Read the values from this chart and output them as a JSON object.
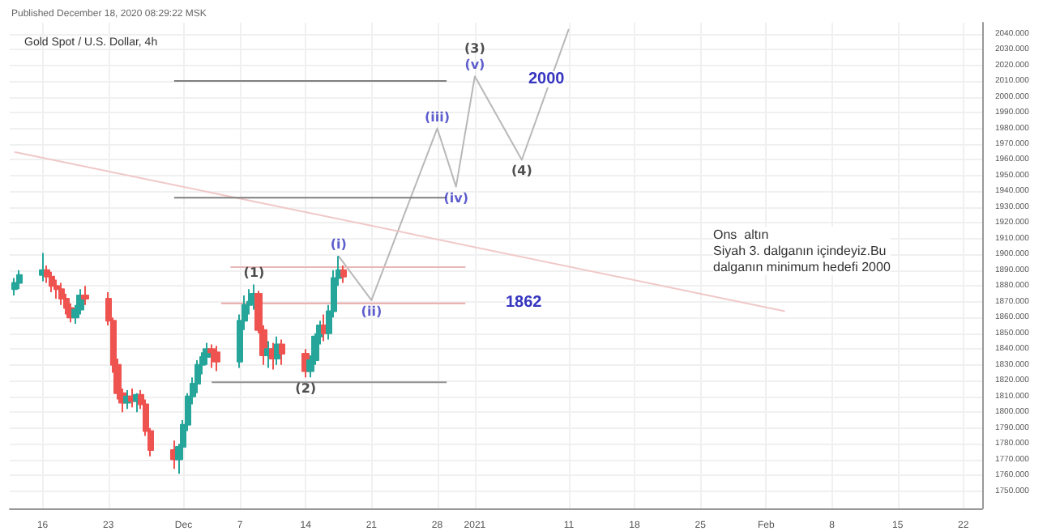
{
  "chart_data": {
    "type": "candlestick",
    "title": "Gold Spot / U.S. Dollar, 4h",
    "subtitle": "Published December 18, 2020 08:29:22 MSK",
    "x": [
      "2020-11-13T00:00",
      "2020-11-13T12:00",
      "2020-11-16T00:00",
      "2020-11-16T12:00",
      "2020-11-17T00:00",
      "2020-11-17T12:00",
      "2020-11-18T00:00",
      "2020-11-18T12:00",
      "2020-11-19T00:00",
      "2020-11-19T12:00",
      "2020-11-20T00:00",
      "2020-11-20T12:00",
      "2020-11-23T00:00",
      "2020-11-23T12:00",
      "2020-11-24T00:00",
      "2020-11-24T12:00",
      "2020-11-25T00:00",
      "2020-11-25T12:00",
      "2020-11-26T00:00",
      "2020-11-26T12:00",
      "2020-11-27T00:00",
      "2020-11-27T12:00",
      "2020-11-30T00:00",
      "2020-11-30T12:00",
      "2020-12-01T00:00",
      "2020-12-01T12:00",
      "2020-12-02T00:00",
      "2020-12-02T12:00",
      "2020-12-03T00:00",
      "2020-12-03T12:00",
      "2020-12-04T00:00",
      "2020-12-04T12:00",
      "2020-12-07T00:00",
      "2020-12-07T12:00",
      "2020-12-08T00:00",
      "2020-12-08T12:00",
      "2020-12-09T00:00",
      "2020-12-09T12:00",
      "2020-12-10T00:00",
      "2020-12-10T12:00",
      "2020-12-11T00:00",
      "2020-12-11T12:00",
      "2020-12-14T00:00",
      "2020-12-14T12:00",
      "2020-12-15T00:00",
      "2020-12-15T12:00",
      "2020-12-16T00:00",
      "2020-12-16T12:00",
      "2020-12-17T00:00",
      "2020-12-17T12:00",
      "2020-12-18T00:00"
    ],
    "ohlc": [
      [
        1878,
        1885,
        1874,
        1882
      ],
      [
        1882,
        1890,
        1878,
        1887
      ],
      [
        1887,
        1901,
        1883,
        1890
      ],
      [
        1890,
        1893,
        1882,
        1886
      ],
      [
        1886,
        1889,
        1876,
        1880
      ],
      [
        1880,
        1884,
        1872,
        1878
      ],
      [
        1878,
        1882,
        1868,
        1872
      ],
      [
        1872,
        1875,
        1862,
        1866
      ],
      [
        1866,
        1869,
        1857,
        1860
      ],
      [
        1860,
        1868,
        1856,
        1865
      ],
      [
        1865,
        1878,
        1862,
        1874
      ],
      [
        1874,
        1880,
        1868,
        1872
      ],
      [
        1872,
        1876,
        1855,
        1858
      ],
      [
        1858,
        1860,
        1825,
        1830
      ],
      [
        1830,
        1834,
        1808,
        1812
      ],
      [
        1812,
        1815,
        1800,
        1806
      ],
      [
        1806,
        1814,
        1802,
        1810
      ],
      [
        1810,
        1815,
        1803,
        1807
      ],
      [
        1807,
        1812,
        1800,
        1811
      ],
      [
        1811,
        1814,
        1802,
        1805
      ],
      [
        1805,
        1808,
        1785,
        1788
      ],
      [
        1788,
        1790,
        1772,
        1776
      ],
      [
        1776,
        1782,
        1764,
        1770
      ],
      [
        1770,
        1780,
        1761,
        1778
      ],
      [
        1778,
        1795,
        1775,
        1792
      ],
      [
        1792,
        1812,
        1788,
        1810
      ],
      [
        1810,
        1822,
        1805,
        1818
      ],
      [
        1818,
        1833,
        1812,
        1830
      ],
      [
        1830,
        1838,
        1824,
        1835
      ],
      [
        1835,
        1844,
        1830,
        1840
      ],
      [
        1840,
        1843,
        1828,
        1838
      ],
      [
        1838,
        1842,
        1826,
        1832
      ],
      [
        1832,
        1862,
        1828,
        1858
      ],
      [
        1858,
        1874,
        1852,
        1868
      ],
      [
        1868,
        1878,
        1862,
        1870
      ],
      [
        1870,
        1881,
        1865,
        1875
      ],
      [
        1875,
        1877,
        1850,
        1852
      ],
      [
        1852,
        1855,
        1830,
        1836
      ],
      [
        1836,
        1845,
        1828,
        1840
      ],
      [
        1840,
        1844,
        1827,
        1834
      ],
      [
        1834,
        1848,
        1830,
        1843
      ],
      [
        1843,
        1846,
        1830,
        1837
      ],
      [
        1837,
        1840,
        1822,
        1826
      ],
      [
        1826,
        1836,
        1822,
        1833
      ],
      [
        1833,
        1850,
        1830,
        1848
      ],
      [
        1848,
        1858,
        1843,
        1855
      ],
      [
        1855,
        1862,
        1845,
        1850
      ],
      [
        1850,
        1868,
        1846,
        1864
      ],
      [
        1864,
        1890,
        1860,
        1885
      ],
      [
        1885,
        1899,
        1880,
        1890
      ],
      [
        1890,
        1893,
        1882,
        1886
      ]
    ],
    "series": [
      {
        "type": "line",
        "color": "#b8b8b8",
        "x": [
          "2020-12-17T12:00",
          "2020-12-21",
          "2020-12-28",
          "2020-12-30",
          "2021-01-01",
          "2021-01-06",
          "2021-01-11"
        ],
        "values": [
          1899,
          1871,
          1980,
          1943,
          2013,
          1960,
          2043
        ]
      },
      {
        "type": "line",
        "color": "#f0c8c8",
        "x": [
          "2020-11-13",
          "2021-02-03"
        ],
        "values": [
          1965,
          1864
        ]
      },
      {
        "type": "line",
        "color": "#808080",
        "x": [
          "2020-11-30",
          "2020-12-29"
        ],
        "values": [
          2010,
          2010
        ]
      },
      {
        "type": "line",
        "color": "#808080",
        "x": [
          "2020-11-30",
          "2020-12-29"
        ],
        "values": [
          1936,
          1936
        ]
      },
      {
        "type": "line",
        "color": "#e8a8a8",
        "x": [
          "2020-12-05",
          "2020-12-31"
        ],
        "values": [
          1869,
          1869
        ]
      },
      {
        "type": "line",
        "color": "#e8b8b8",
        "x": [
          "2020-12-06",
          "2020-12-31"
        ],
        "values": [
          1892,
          1892
        ]
      },
      {
        "type": "line",
        "color": "#909090",
        "x": [
          "2020-12-04",
          "2020-12-29"
        ],
        "values": [
          1819,
          1819
        ]
      }
    ],
    "annotations": [
      {
        "text": "(1)",
        "x": "2020-12-08T12:00",
        "y": 1881
      },
      {
        "text": "(2)",
        "x": "2020-12-14T00:00",
        "y": 1822
      },
      {
        "text": "(3)",
        "x": "2021-01-01",
        "y": 2013
      },
      {
        "text": "(4)",
        "x": "2021-01-06",
        "y": 1960
      },
      {
        "text": "(i)",
        "x": "2020-12-17T12:00",
        "y": 1899
      },
      {
        "text": "(ii)",
        "x": "2020-12-21",
        "y": 1871
      },
      {
        "text": "(iii)",
        "x": "2020-12-28",
        "y": 1980
      },
      {
        "text": "(iv)",
        "x": "2020-12-30",
        "y": 1943
      },
      {
        "text": "(v)",
        "x": "2021-01-01",
        "y": 2013
      },
      "1862",
      "2000",
      "Ons  altın\nSiyah 3. dalganın içindeyiz.Bu\ndalganın minimum hedefi 2000"
    ],
    "xlim": [
      "2020-11-12T12:00",
      "2021-02-24"
    ],
    "xticks": [
      {
        "value": "2020-11-16",
        "label": "16"
      },
      {
        "value": "2020-11-23",
        "label": "23"
      },
      {
        "value": "2020-12-01",
        "label": "Dec"
      },
      {
        "value": "2020-12-07",
        "label": "7"
      },
      {
        "value": "2020-12-14",
        "label": "14"
      },
      {
        "value": "2020-12-21",
        "label": "21"
      },
      {
        "value": "2020-12-28",
        "label": "28"
      },
      {
        "value": "2021-01-01",
        "label": "2021"
      },
      {
        "value": "2021-01-11",
        "label": "11"
      },
      {
        "value": "2021-01-18",
        "label": "18"
      },
      {
        "value": "2021-01-25",
        "label": "25"
      },
      {
        "value": "2021-02-01",
        "label": "Feb"
      },
      {
        "value": "2021-02-08",
        "label": "8"
      },
      {
        "value": "2021-02-15",
        "label": "15"
      },
      {
        "value": "2021-02-22",
        "label": "22"
      }
    ],
    "ylim": [
      1739,
      2047
    ],
    "yticks": [
      {
        "value": 1750,
        "label": "1750.000"
      },
      {
        "value": 1760,
        "label": "1760.000"
      },
      {
        "value": 1770,
        "label": "1770.000"
      },
      {
        "value": 1780,
        "label": "1780.000"
      },
      {
        "value": 1790,
        "label": "1790.000"
      },
      {
        "value": 1800,
        "label": "1800.000"
      },
      {
        "value": 1810,
        "label": "1810.000"
      },
      {
        "value": 1820,
        "label": "1820.000"
      },
      {
        "value": 1830,
        "label": "1830.000"
      },
      {
        "value": 1840,
        "label": "1840.000"
      },
      {
        "value": 1850,
        "label": "1850.000"
      },
      {
        "value": 1860,
        "label": "1860.000"
      },
      {
        "value": 1870,
        "label": "1870.000"
      },
      {
        "value": 1880,
        "label": "1880.000"
      },
      {
        "value": 1890,
        "label": "1890.000"
      },
      {
        "value": 1900,
        "label": "1900.000"
      },
      {
        "value": 1910,
        "label": "1910.000"
      },
      {
        "value": 1920,
        "label": "1920.000"
      },
      {
        "value": 1930,
        "label": "1930.000"
      },
      {
        "value": 1940,
        "label": "1940.000"
      },
      {
        "value": 1950,
        "label": "1950.000"
      },
      {
        "value": 1960,
        "label": "1960.000"
      },
      {
        "value": 1970,
        "label": "1970.000"
      },
      {
        "value": 1980,
        "label": "1980.000"
      },
      {
        "value": 1990,
        "label": "1990.000"
      },
      {
        "value": 2000,
        "label": "2000.000"
      },
      {
        "value": 2010,
        "label": "2010.000"
      },
      {
        "value": 2020,
        "label": "2020.000"
      },
      {
        "value": 2030,
        "label": "2030.000"
      },
      {
        "value": 2040,
        "label": "2040.000"
      }
    ],
    "grid": true
  }
}
